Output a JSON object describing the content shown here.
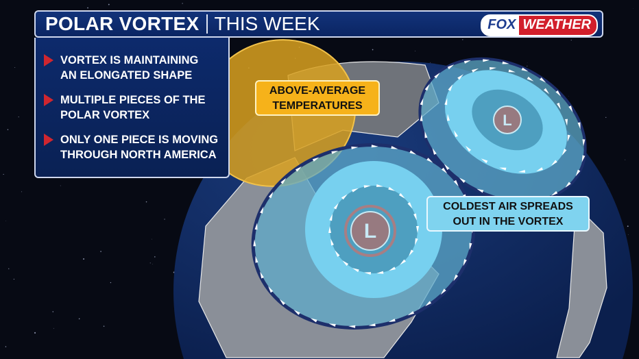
{
  "header": {
    "title_bold": "POLAR VORTEX",
    "title_light": "THIS WEEK",
    "logo": "FOX WEATHER",
    "logo_parts": [
      "FOX",
      "WEATHER"
    ]
  },
  "panel": {
    "bullets": [
      {
        "line1": "VORTEX IS MAINTAINING",
        "line2": "AN ELONGATED SHAPE"
      },
      {
        "line1": "MULTIPLE PIECES OF THE",
        "line2": "POLAR VORTEX"
      },
      {
        "line1": "ONLY ONE PIECE IS MOVING",
        "line2": "THROUGH NORTH AMERICA"
      }
    ]
  },
  "callouts": {
    "warm": {
      "line1": "ABOVE-AVERAGE",
      "line2": "TEMPERATURES"
    },
    "cold": {
      "line1": "COLDEST AIR SPREADS",
      "line2": "OUT IN THE VORTEX"
    }
  },
  "map": {
    "low_label": "L",
    "lows": [
      {
        "label": "L"
      },
      {
        "label": "L"
      }
    ]
  },
  "colors": {
    "header": "#0b2563",
    "bullet": "#d0262f",
    "warm": "#f6b21a",
    "cold": "#7fd3ef",
    "ocean": "#0f2a5e",
    "low": "#9a7c82"
  }
}
